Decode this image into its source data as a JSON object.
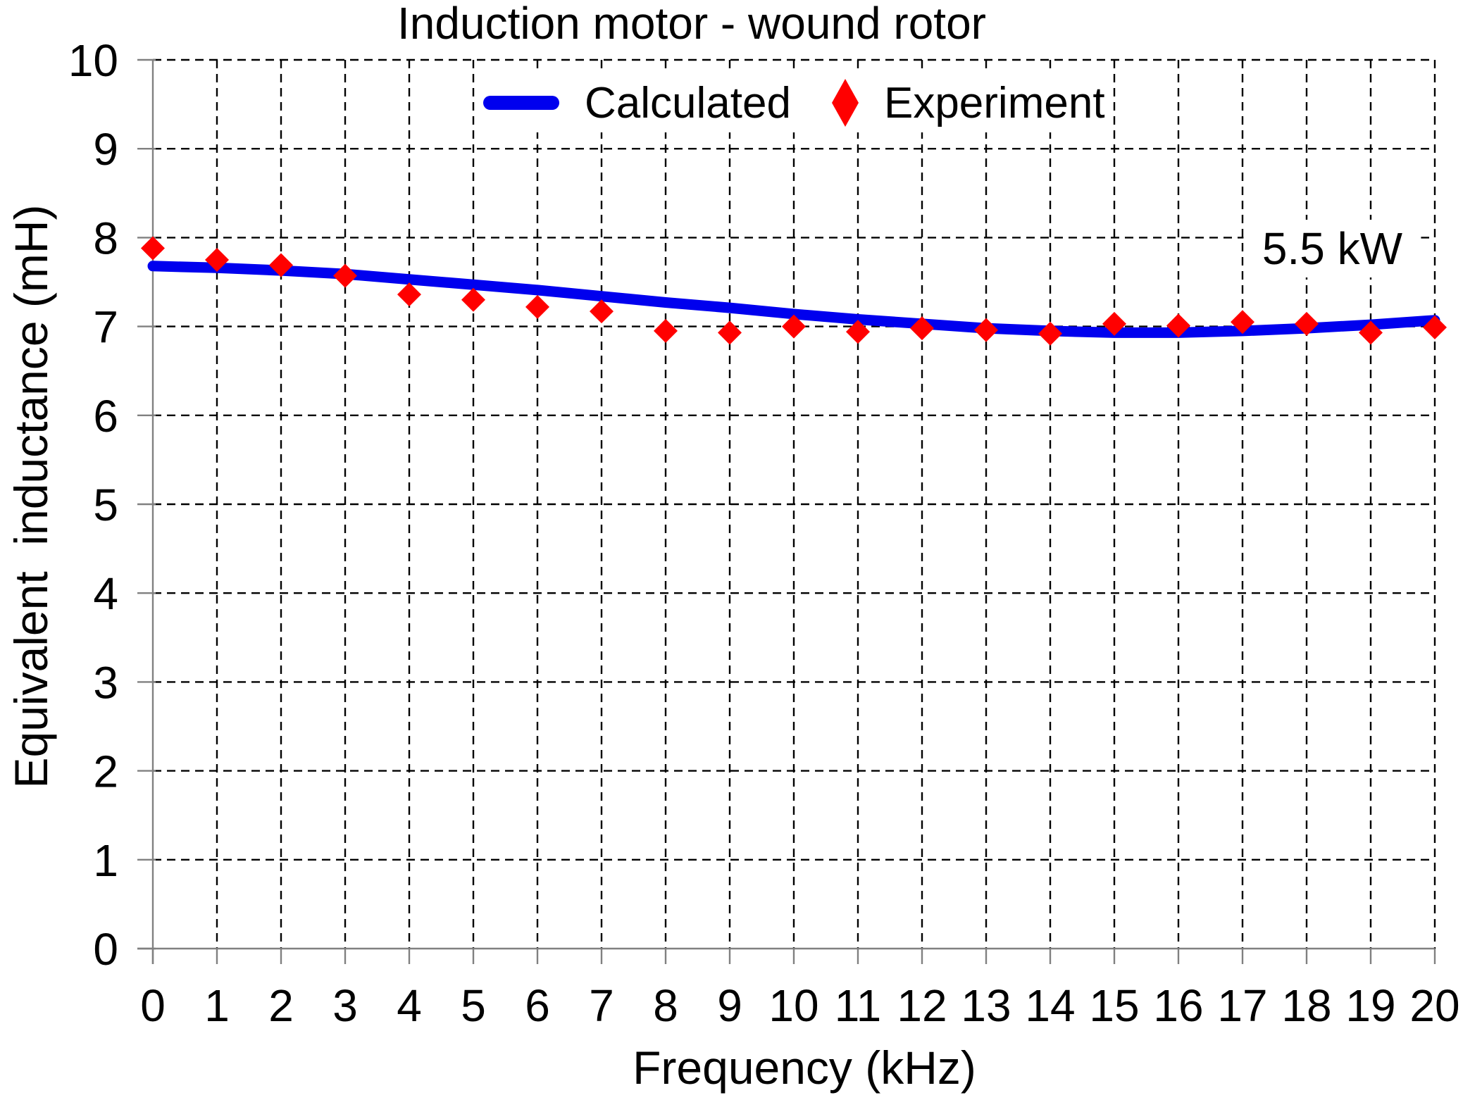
{
  "colors": {
    "background": "#ffffff",
    "gridline": "#000000",
    "axis": "#808080",
    "text": "#000000",
    "calculated_line": "#0000ee",
    "experiment_marker": "#ff0000"
  },
  "chart_data": {
    "type": "line",
    "title": "Induction motor - wound rotor",
    "xlabel": "Frequency (kHz)",
    "ylabel": "Equivalent  inductance (mH)",
    "xlim": [
      0,
      20
    ],
    "ylim": [
      0,
      10
    ],
    "xticks": [
      0,
      1,
      2,
      3,
      4,
      5,
      6,
      7,
      8,
      9,
      10,
      11,
      12,
      13,
      14,
      15,
      16,
      17,
      18,
      19,
      20
    ],
    "yticks": [
      0,
      1,
      2,
      3,
      4,
      5,
      6,
      7,
      8,
      9,
      10
    ],
    "grid": "dashed",
    "legend_position": "top-center-inside",
    "x": [
      0,
      1,
      2,
      3,
      4,
      5,
      6,
      7,
      8,
      9,
      10,
      11,
      12,
      13,
      14,
      15,
      16,
      17,
      18,
      19,
      20
    ],
    "series": [
      {
        "name": "Calculated",
        "type": "line",
        "color": "#0000ee",
        "values": [
          7.68,
          7.66,
          7.63,
          7.59,
          7.53,
          7.47,
          7.41,
          7.34,
          7.27,
          7.21,
          7.14,
          7.08,
          7.03,
          6.98,
          6.95,
          6.93,
          6.93,
          6.95,
          6.98,
          7.02,
          7.07
        ]
      },
      {
        "name": "Experiment",
        "type": "scatter",
        "marker": "diamond",
        "color": "#ff0000",
        "values": [
          7.88,
          7.75,
          7.69,
          7.57,
          7.36,
          7.3,
          7.22,
          7.17,
          6.95,
          6.93,
          7.0,
          6.94,
          6.98,
          6.96,
          6.92,
          7.03,
          7.01,
          7.05,
          7.03,
          6.93,
          6.99
        ]
      }
    ],
    "annotations": [
      {
        "text": "5.5 kW",
        "x": 18.4,
        "y": 7.88
      }
    ]
  }
}
